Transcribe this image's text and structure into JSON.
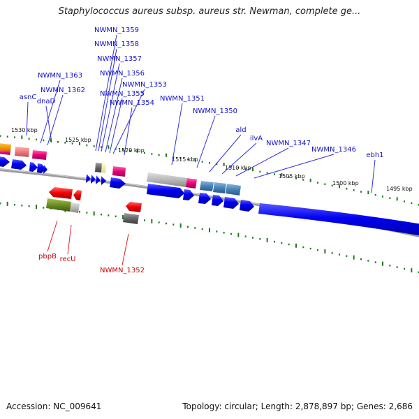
{
  "title": "Staphylococcus aureus subsp. aureus str. Newman, complete ge...",
  "footer": {
    "accession": "Accession: NC_009641",
    "summary": "Topology: circular; Length: 2,878,897 bp; Genes: 2,686"
  },
  "scale_labels": [
    "1530 kbp",
    "1525 kbp",
    "1520 kbp",
    "1515 kbp",
    "1510 kbp",
    "1505 kbp",
    "1500 kbp",
    "1495 kbp"
  ],
  "forward_genes": [
    "NWMN_1359",
    "NWMN_1358",
    "NWMN_1357",
    "NWMN_1363",
    "NWMN_1356",
    "NWMN_1353",
    "NWMN_1362",
    "NWMN_1355",
    "asnC",
    "dnaD",
    "NWMN_1354",
    "NWMN_1351",
    "NWMN_1350",
    "ald",
    "ilvA",
    "NWMN_1347",
    "NWMN_1346",
    "ebh1"
  ],
  "reverse_genes": [
    "pbpB",
    "recU",
    "NWMN_1352"
  ],
  "colors": {
    "forward_label": "#1010cc",
    "reverse_label": "#cc0000",
    "cds_blue": "#0000ee",
    "tick_green": "#207a20",
    "backbone": "#888888"
  }
}
